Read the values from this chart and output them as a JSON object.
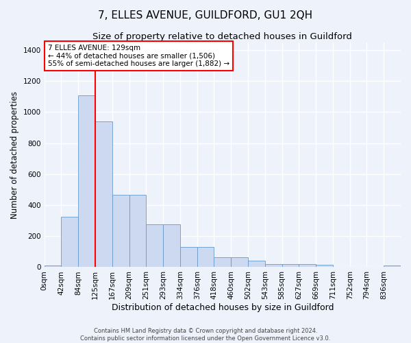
{
  "title1": "7, ELLES AVENUE, GUILDFORD, GU1 2QH",
  "title2": "Size of property relative to detached houses in Guildford",
  "xlabel": "Distribution of detached houses by size in Guildford",
  "ylabel": "Number of detached properties",
  "x_labels": [
    "0sqm",
    "42sqm",
    "84sqm",
    "125sqm",
    "167sqm",
    "209sqm",
    "251sqm",
    "293sqm",
    "334sqm",
    "376sqm",
    "418sqm",
    "460sqm",
    "502sqm",
    "543sqm",
    "585sqm",
    "627sqm",
    "669sqm",
    "711sqm",
    "752sqm",
    "794sqm",
    "836sqm"
  ],
  "bar_heights": [
    10,
    325,
    1110,
    940,
    465,
    465,
    275,
    275,
    130,
    130,
    65,
    65,
    40,
    20,
    20,
    20,
    15,
    0,
    0,
    0,
    10
  ],
  "bar_color": "#ccd9f0",
  "bar_edge_color": "#6699cc",
  "red_line_x": 3,
  "annotation_line1": "7 ELLES AVENUE: 129sqm",
  "annotation_line2": "← 44% of detached houses are smaller (1,506)",
  "annotation_line3": "55% of semi-detached houses are larger (1,882) →",
  "annotation_box_color": "white",
  "annotation_box_edge": "red",
  "ylim": [
    0,
    1450
  ],
  "yticks": [
    0,
    200,
    400,
    600,
    800,
    1000,
    1200,
    1400
  ],
  "footer_text": "Contains HM Land Registry data © Crown copyright and database right 2024.\nContains public sector information licensed under the Open Government Licence v3.0.",
  "background_color": "#eef2fb",
  "grid_color": "white",
  "title1_fontsize": 11,
  "title2_fontsize": 9.5,
  "xlabel_fontsize": 9,
  "ylabel_fontsize": 8.5,
  "tick_fontsize": 7.5,
  "footer_fontsize": 6
}
